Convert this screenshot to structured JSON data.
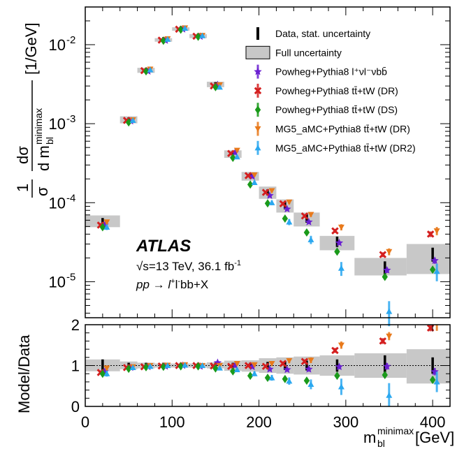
{
  "chart_data": {
    "type": "scatter",
    "experiment": "ATLAS",
    "energy_label": "√s=13 TeV, 36.1 fb",
    "lumi_exponent": "-1",
    "process_label": "pp → l",
    "process_suffix": "bb+X",
    "ylabel_main": "1/σ dσ/d m_bl^minimax [1/GeV]",
    "ylabel_main_unit": "[1/GeV]",
    "ylabel_ratio": "Model/Data",
    "xlabel": "m_bl^minimax [GeV]",
    "xlabel_unit": "[GeV]",
    "xlim": [
      0,
      420
    ],
    "ylim_main": [
      3.5e-06,
      0.03
    ],
    "ylim_ratio": [
      0,
      2
    ],
    "x_ticks": [
      "0",
      "100",
      "200",
      "300",
      "400"
    ],
    "x_tick_values": [
      0,
      100,
      200,
      300,
      400
    ],
    "y_ticks_main": [
      "10",
      "10",
      "10",
      "10"
    ],
    "y_tick_exponents": [
      "-5",
      "-4",
      "-3",
      "-2"
    ],
    "y_tick_values_main": [
      1e-05,
      0.0001,
      0.001,
      0.01
    ],
    "y_ticks_ratio": [
      "0",
      "1",
      "2"
    ],
    "y_tick_values_ratio": [
      0,
      1,
      2
    ],
    "bins": [
      {
        "lo": 0,
        "hi": 40,
        "c": 20
      },
      {
        "lo": 40,
        "hi": 60,
        "c": 50
      },
      {
        "lo": 60,
        "hi": 80,
        "c": 70
      },
      {
        "lo": 80,
        "hi": 100,
        "c": 90
      },
      {
        "lo": 100,
        "hi": 120,
        "c": 110
      },
      {
        "lo": 120,
        "hi": 140,
        "c": 130
      },
      {
        "lo": 140,
        "hi": 160,
        "c": 150
      },
      {
        "lo": 160,
        "hi": 180,
        "c": 170
      },
      {
        "lo": 180,
        "hi": 200,
        "c": 190
      },
      {
        "lo": 200,
        "hi": 220,
        "c": 210
      },
      {
        "lo": 220,
        "hi": 240,
        "c": 230
      },
      {
        "lo": 240,
        "hi": 270,
        "c": 255
      },
      {
        "lo": 270,
        "hi": 310,
        "c": 290
      },
      {
        "lo": 310,
        "hi": 370,
        "c": 345
      },
      {
        "lo": 370,
        "hi": 430,
        "c": 400
      }
    ],
    "data_values": [
      5.5e-05,
      0.00111,
      0.0047,
      0.0115,
      0.0158,
      0.0128,
      0.0031,
      0.00042,
      0.00022,
      0.000135,
      9.2e-05,
      6.3e-05,
      3.2e-05,
      1.4e-05,
      2.2e-05
    ],
    "full_unc_lo": [
      4.9e-05,
      0.00101,
      0.0044,
      0.0109,
      0.015,
      0.0121,
      0.0029,
      0.00037,
      0.00019,
      0.000112,
      7.5e-05,
      5e-05,
      2.5e-05,
      1.2e-05,
      1.25e-05
    ],
    "full_unc_hi": [
      6.9e-05,
      0.00124,
      0.0051,
      0.0121,
      0.0166,
      0.0136,
      0.0034,
      0.00046,
      0.000245,
      0.00016,
      0.00011,
      7.5e-05,
      3.8e-05,
      2e-05,
      3e-05
    ],
    "ratio_unc_lo": [
      0.86,
      0.91,
      0.93,
      0.95,
      0.95,
      0.95,
      0.93,
      0.87,
      0.85,
      0.82,
      0.8,
      0.78,
      0.75,
      0.7,
      0.56
    ],
    "ratio_unc_hi": [
      1.15,
      1.1,
      1.07,
      1.05,
      1.05,
      1.05,
      1.08,
      1.12,
      1.13,
      1.18,
      1.2,
      1.22,
      1.25,
      1.3,
      1.4
    ],
    "series": [
      {
        "name": "Data, stat. uncertainty",
        "marker": "bar",
        "color": "#000000",
        "dx": 0,
        "values": [
          5.5e-05,
          0.00111,
          0.0047,
          0.0115,
          0.0158,
          0.0128,
          0.0031,
          0.00042,
          0.00022,
          0.000135,
          9.2e-05,
          6.3e-05,
          3.2e-05,
          1.4e-05,
          2.2e-05
        ],
        "ratio": [
          1.0,
          1.0,
          1.0,
          1.0,
          1.0,
          1.0,
          1.0,
          1.0,
          1.0,
          1.0,
          1.0,
          1.0,
          1.0,
          1.0,
          1.0
        ],
        "err_main": [
          0.15,
          0.03,
          0.02,
          0.015,
          0.015,
          0.015,
          0.03,
          0.05,
          0.07,
          0.09,
          0.11,
          0.12,
          0.15,
          0.25,
          0.2
        ],
        "err_ratio": [
          0.15,
          0.03,
          0.02,
          0.015,
          0.015,
          0.015,
          0.03,
          0.05,
          0.07,
          0.09,
          0.11,
          0.12,
          0.15,
          0.25,
          0.2
        ]
      },
      {
        "name": "Powheg+Pythia8 l⁺νl⁻νbb̄",
        "marker": "star",
        "color": "#6a1fd1",
        "dx": 3,
        "values": [
          5.2e-05,
          0.00108,
          0.0046,
          0.0113,
          0.0157,
          0.0127,
          0.0031,
          0.00043,
          0.000215,
          0.000123,
          8.3e-05,
          5.7e-05,
          3.1e-05,
          1.4e-05,
          1.85e-05
        ],
        "ratio": [
          0.85,
          0.95,
          0.97,
          0.98,
          1.0,
          0.98,
          1.07,
          1.0,
          0.97,
          0.91,
          0.9,
          0.91,
          0.97,
          0.98,
          0.85
        ],
        "err_main": [
          0.06,
          0.02,
          0.015,
          0.01,
          0.01,
          0.01,
          0.02,
          0.03,
          0.04,
          0.05,
          0.05,
          0.06,
          0.06,
          0.08,
          0.09
        ],
        "err_ratio": [
          0.05,
          0.02,
          0.015,
          0.01,
          0.01,
          0.01,
          0.02,
          0.03,
          0.04,
          0.05,
          0.05,
          0.06,
          0.06,
          0.08,
          0.09
        ]
      },
      {
        "name": "Powheg+Pythia8 tt̄+tW (DR)",
        "marker": "x",
        "color": "#d41f1f",
        "dx": -3,
        "values": [
          5.2e-05,
          0.0011,
          0.0047,
          0.0114,
          0.0157,
          0.0128,
          0.003,
          0.00042,
          0.00022,
          0.000135,
          9.7e-05,
          6.8e-05,
          4.4e-05,
          2.2e-05,
          4e-05
        ],
        "ratio": [
          0.83,
          0.95,
          0.97,
          0.99,
          1.0,
          1.0,
          0.99,
          0.98,
          1.0,
          0.98,
          1.05,
          1.1,
          1.37,
          1.6,
          1.92
        ],
        "err_main": [
          0.06,
          0.02,
          0.015,
          0.01,
          0.01,
          0.01,
          0.02,
          0.03,
          0.04,
          0.04,
          0.05,
          0.05,
          0.06,
          0.07,
          0.08
        ],
        "err_ratio": [
          0.05,
          0.02,
          0.015,
          0.01,
          0.01,
          0.01,
          0.02,
          0.03,
          0.04,
          0.04,
          0.05,
          0.05,
          0.06,
          0.07,
          0.08
        ]
      },
      {
        "name": "Powheg+Pythia8 tt̄+tW (DS)",
        "marker": "diamond",
        "color": "#1a9a1a",
        "dx": 0,
        "values": [
          4.9e-05,
          0.00104,
          0.0046,
          0.0112,
          0.0155,
          0.0126,
          0.0029,
          0.00037,
          0.00017,
          9.8e-05,
          6.3e-05,
          4.2e-05,
          2.4e-05,
          1.15e-05,
          1.42e-05
        ],
        "ratio": [
          0.8,
          0.92,
          0.96,
          0.97,
          0.98,
          0.98,
          0.93,
          0.86,
          0.75,
          0.7,
          0.67,
          0.63,
          0.75,
          0.77,
          0.65
        ],
        "err_main": [
          0.06,
          0.02,
          0.015,
          0.01,
          0.01,
          0.01,
          0.02,
          0.03,
          0.04,
          0.04,
          0.05,
          0.05,
          0.06,
          0.07,
          0.08
        ],
        "err_ratio": [
          0.05,
          0.02,
          0.015,
          0.01,
          0.01,
          0.01,
          0.02,
          0.03,
          0.04,
          0.04,
          0.05,
          0.05,
          0.06,
          0.07,
          0.08
        ]
      },
      {
        "name": "MG5_aMC+Pythia8 tt̄+tW (DR)",
        "marker": "tridown",
        "color": "#e8791a",
        "dx": 6,
        "values": [
          5.7e-05,
          0.00112,
          0.0049,
          0.0119,
          0.0163,
          0.0131,
          0.0031,
          0.00046,
          0.000225,
          0.000142,
          0.000102,
          7.1e-05,
          4.9e-05,
          2.4e-05,
          4.4e-05
        ],
        "ratio": [
          0.94,
          0.97,
          1.0,
          1.01,
          1.02,
          1.0,
          1.0,
          1.05,
          1.02,
          1.05,
          1.12,
          1.13,
          1.5,
          1.72,
          1.97
        ],
        "err_main": [
          0.07,
          0.03,
          0.02,
          0.015,
          0.015,
          0.015,
          0.025,
          0.04,
          0.05,
          0.05,
          0.06,
          0.07,
          0.09,
          0.1,
          0.12
        ],
        "err_ratio": [
          0.06,
          0.03,
          0.02,
          0.015,
          0.015,
          0.015,
          0.025,
          0.04,
          0.05,
          0.05,
          0.06,
          0.07,
          0.09,
          0.1,
          0.12
        ]
      },
      {
        "name": "MG5_aMC+Pythia8 tt̄+tW (DR2)",
        "marker": "triup",
        "color": "#2ba8f0",
        "dx": 6,
        "values": [
          4.9e-05,
          0.0011,
          0.0048,
          0.0117,
          0.0161,
          0.013,
          0.0029,
          0.00038,
          0.00018,
          0.0001,
          5.7e-05,
          3.4e-05,
          1.48e-05,
          4.2e-06,
          1.35e-05
        ],
        "ratio": [
          0.8,
          0.95,
          0.98,
          1.0,
          1.01,
          1.0,
          0.94,
          0.9,
          0.8,
          0.7,
          0.62,
          0.54,
          0.48,
          0.27,
          0.6
        ],
        "err_main": [
          0.08,
          0.03,
          0.02,
          0.015,
          0.015,
          0.015,
          0.03,
          0.05,
          0.06,
          0.07,
          0.09,
          0.12,
          0.2,
          0.35,
          0.25
        ],
        "err_ratio": [
          0.07,
          0.03,
          0.02,
          0.015,
          0.015,
          0.015,
          0.03,
          0.05,
          0.06,
          0.07,
          0.09,
          0.12,
          0.2,
          0.3,
          0.25
        ]
      }
    ],
    "legend": [
      {
        "label": "Data, stat. uncertainty",
        "icon": "data-bar-icon"
      },
      {
        "label": "Full uncertainty",
        "icon": "gray-box-icon"
      },
      {
        "label": "Powheg+Pythia8 l⁺νl⁻νbb̄",
        "icon": "star-icon"
      },
      {
        "label": "Powheg+Pythia8 tt̄+tW (DR)",
        "icon": "cross-icon"
      },
      {
        "label": "Powheg+Pythia8 tt̄+tW (DS)",
        "icon": "diamond-icon"
      },
      {
        "label": "MG5_aMC+Pythia8 tt̄+tW (DR)",
        "icon": "triangle-down-icon"
      },
      {
        "label": "MG5_aMC+Pythia8 tt̄+tW (DR2)",
        "icon": "triangle-up-icon"
      }
    ]
  },
  "colors": {
    "band": "#c8c8c8",
    "axis": "#000000"
  }
}
